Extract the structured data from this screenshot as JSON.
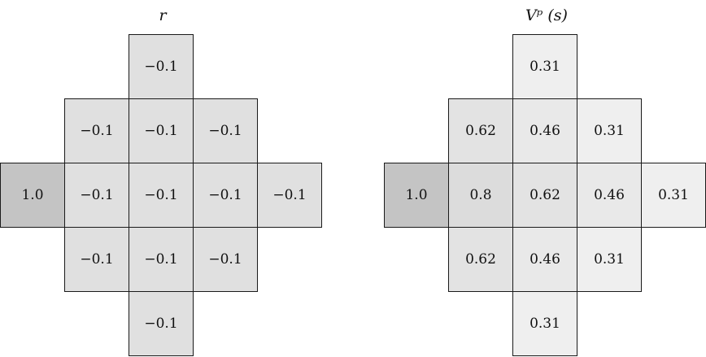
{
  "panels": [
    {
      "id": "r",
      "title": "r",
      "cells": [
        {
          "row": 0,
          "col": 2,
          "label": "−0.1",
          "shade": "#e0e0e0"
        },
        {
          "row": 1,
          "col": 1,
          "label": "−0.1",
          "shade": "#e0e0e0"
        },
        {
          "row": 1,
          "col": 2,
          "label": "−0.1",
          "shade": "#e0e0e0"
        },
        {
          "row": 1,
          "col": 3,
          "label": "−0.1",
          "shade": "#e0e0e0"
        },
        {
          "row": 2,
          "col": 0,
          "label": "1.0",
          "shade": "#c4c4c4"
        },
        {
          "row": 2,
          "col": 1,
          "label": "−0.1",
          "shade": "#e0e0e0"
        },
        {
          "row": 2,
          "col": 2,
          "label": "−0.1",
          "shade": "#e0e0e0"
        },
        {
          "row": 2,
          "col": 3,
          "label": "−0.1",
          "shade": "#e0e0e0"
        },
        {
          "row": 2,
          "col": 4,
          "label": "−0.1",
          "shade": "#e0e0e0"
        },
        {
          "row": 3,
          "col": 1,
          "label": "−0.1",
          "shade": "#e0e0e0"
        },
        {
          "row": 3,
          "col": 2,
          "label": "−0.1",
          "shade": "#e0e0e0"
        },
        {
          "row": 3,
          "col": 3,
          "label": "−0.1",
          "shade": "#e0e0e0"
        },
        {
          "row": 4,
          "col": 2,
          "label": "−0.1",
          "shade": "#e0e0e0"
        }
      ]
    },
    {
      "id": "v",
      "title": "Vᵖ (s)",
      "cells": [
        {
          "row": 0,
          "col": 2,
          "label": "0.31",
          "shade": "#efefef"
        },
        {
          "row": 1,
          "col": 1,
          "label": "0.62",
          "shade": "#e3e3e3"
        },
        {
          "row": 1,
          "col": 2,
          "label": "0.46",
          "shade": "#e9e9e9"
        },
        {
          "row": 1,
          "col": 3,
          "label": "0.31",
          "shade": "#efefef"
        },
        {
          "row": 2,
          "col": 0,
          "label": "1.0",
          "shade": "#c4c4c4"
        },
        {
          "row": 2,
          "col": 1,
          "label": "0.8",
          "shade": "#dcdcdc"
        },
        {
          "row": 2,
          "col": 2,
          "label": "0.62",
          "shade": "#e3e3e3"
        },
        {
          "row": 2,
          "col": 3,
          "label": "0.46",
          "shade": "#e9e9e9"
        },
        {
          "row": 2,
          "col": 4,
          "label": "0.31",
          "shade": "#efefef"
        },
        {
          "row": 3,
          "col": 1,
          "label": "0.62",
          "shade": "#e3e3e3"
        },
        {
          "row": 3,
          "col": 2,
          "label": "0.46",
          "shade": "#e9e9e9"
        },
        {
          "row": 3,
          "col": 3,
          "label": "0.31",
          "shade": "#efefef"
        },
        {
          "row": 4,
          "col": 2,
          "label": "0.31",
          "shade": "#efefef"
        }
      ]
    }
  ]
}
